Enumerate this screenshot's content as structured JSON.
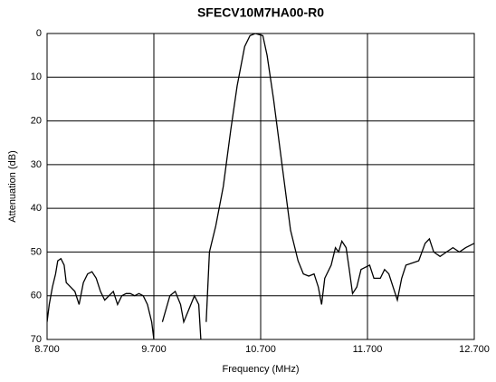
{
  "chart_data": {
    "type": "line",
    "title": "SFECV10M7HA00-R0",
    "x_label": "Frequency (MHz)",
    "y_label": "Attenuation (dB)",
    "x": [
      8.7,
      8.72,
      8.75,
      8.78,
      8.8,
      8.83,
      8.86,
      8.88,
      8.92,
      8.96,
      9.0,
      9.04,
      9.08,
      9.12,
      9.16,
      9.2,
      9.24,
      9.28,
      9.32,
      9.36,
      9.4,
      9.44,
      9.48,
      9.52,
      9.56,
      9.6,
      9.64,
      9.68,
      9.7,
      9.75,
      9.78,
      9.85,
      9.9,
      9.95,
      9.98,
      10.03,
      10.08,
      10.12,
      10.14,
      10.17,
      10.19,
      10.22,
      10.28,
      10.35,
      10.42,
      10.48,
      10.55,
      10.6,
      10.65,
      10.72,
      10.76,
      10.82,
      10.9,
      10.98,
      11.05,
      11.1,
      11.15,
      11.2,
      11.24,
      11.27,
      11.3,
      11.36,
      11.4,
      11.43,
      11.46,
      11.5,
      11.53,
      11.56,
      11.6,
      11.64,
      11.68,
      11.72,
      11.76,
      11.82,
      11.86,
      11.9,
      11.94,
      11.98,
      12.02,
      12.06,
      12.12,
      12.18,
      12.24,
      12.28,
      12.32,
      12.38,
      12.44,
      12.5,
      12.56,
      12.62,
      12.66,
      12.7
    ],
    "values": [
      66,
      62,
      58,
      55,
      52,
      51.5,
      53,
      57,
      58,
      59,
      62,
      57,
      55,
      54.5,
      56,
      59,
      61,
      60,
      59,
      62,
      60,
      59.5,
      59.5,
      60,
      59.5,
      60,
      62,
      66,
      70,
      null,
      66,
      60,
      59,
      62,
      66,
      63,
      60,
      62,
      70,
      null,
      66,
      50,
      44,
      35,
      22,
      12,
      3,
      0.5,
      0,
      0.5,
      5,
      15,
      30,
      45,
      52,
      55,
      55.5,
      55,
      58,
      62,
      56,
      53,
      49,
      50,
      47.5,
      49,
      54,
      59.5,
      58,
      54,
      53.5,
      53,
      56,
      56,
      54,
      55,
      58,
      61,
      56,
      53,
      52.5,
      52,
      48,
      47,
      50,
      51,
      50,
      49,
      50,
      49,
      48.5,
      48
    ],
    "color": "#000000",
    "xlim": [
      8.7,
      12.7
    ],
    "xticks": [
      {
        "value": 8.7,
        "label": "8.700"
      },
      {
        "value": 9.7,
        "label": "9.700"
      },
      {
        "value": 10.7,
        "label": "10.700"
      },
      {
        "value": 11.7,
        "label": "11.700"
      },
      {
        "value": 12.7,
        "label": "12.700"
      }
    ],
    "ylim": [
      70,
      0
    ],
    "yticks": [
      0,
      10,
      20,
      30,
      40,
      50,
      60,
      70
    ],
    "grid": true
  }
}
